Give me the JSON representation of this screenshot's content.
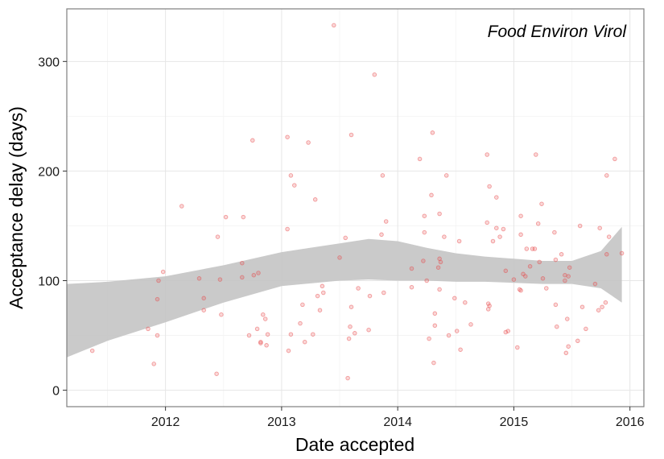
{
  "chart_data": {
    "type": "scatter",
    "title": "",
    "panel_label": "Food Environ Virol",
    "xlabel": "Date accepted",
    "ylabel": "Acceptance delay (days)",
    "x_ticks": [
      2012,
      2013,
      2014,
      2015,
      2016
    ],
    "y_ticks": [
      0,
      100,
      200,
      300
    ],
    "xlim": [
      2011.15,
      2016.12
    ],
    "ylim": [
      -15,
      348
    ],
    "grid": true,
    "point_color": "#e8474a",
    "band_color": "#c4c4c4",
    "series": [
      {
        "values": [
          [
            2011.37,
            36
          ],
          [
            2011.85,
            56
          ],
          [
            2011.9,
            24
          ],
          [
            2011.93,
            50
          ],
          [
            2011.93,
            83
          ],
          [
            2011.94,
            100
          ],
          [
            2011.98,
            108
          ],
          [
            2012.14,
            168
          ],
          [
            2012.29,
            102
          ],
          [
            2012.33,
            73
          ],
          [
            2012.33,
            84
          ],
          [
            2012.44,
            15
          ],
          [
            2012.45,
            140
          ],
          [
            2012.47,
            101
          ],
          [
            2012.48,
            69
          ],
          [
            2012.52,
            158
          ],
          [
            2012.66,
            116
          ],
          [
            2012.66,
            103
          ],
          [
            2012.67,
            158
          ],
          [
            2012.72,
            50
          ],
          [
            2012.75,
            228
          ],
          [
            2012.76,
            105
          ],
          [
            2012.79,
            56
          ],
          [
            2012.8,
            107
          ],
          [
            2012.82,
            44
          ],
          [
            2012.82,
            43
          ],
          [
            2012.84,
            69
          ],
          [
            2012.86,
            65
          ],
          [
            2012.87,
            41
          ],
          [
            2012.88,
            51
          ],
          [
            2013.05,
            231
          ],
          [
            2013.05,
            147
          ],
          [
            2013.06,
            36
          ],
          [
            2013.08,
            196
          ],
          [
            2013.08,
            51
          ],
          [
            2013.11,
            187
          ],
          [
            2013.16,
            61
          ],
          [
            2013.18,
            78
          ],
          [
            2013.2,
            44
          ],
          [
            2013.23,
            226
          ],
          [
            2013.27,
            51
          ],
          [
            2013.29,
            174
          ],
          [
            2013.31,
            86
          ],
          [
            2013.33,
            73
          ],
          [
            2013.35,
            95
          ],
          [
            2013.36,
            89
          ],
          [
            2013.45,
            333
          ],
          [
            2013.5,
            121
          ],
          [
            2013.55,
            139
          ],
          [
            2013.57,
            11
          ],
          [
            2013.58,
            47
          ],
          [
            2013.59,
            58
          ],
          [
            2013.6,
            76
          ],
          [
            2013.6,
            233
          ],
          [
            2013.63,
            52
          ],
          [
            2013.66,
            93
          ],
          [
            2013.75,
            55
          ],
          [
            2013.76,
            86
          ],
          [
            2013.8,
            288
          ],
          [
            2013.86,
            142
          ],
          [
            2013.87,
            196
          ],
          [
            2013.88,
            89
          ],
          [
            2013.9,
            154
          ],
          [
            2014.12,
            111
          ],
          [
            2014.12,
            94
          ],
          [
            2014.19,
            211
          ],
          [
            2014.22,
            118
          ],
          [
            2014.23,
            144
          ],
          [
            2014.23,
            159
          ],
          [
            2014.25,
            100
          ],
          [
            2014.27,
            47
          ],
          [
            2014.29,
            178
          ],
          [
            2014.3,
            235
          ],
          [
            2014.31,
            25
          ],
          [
            2014.32,
            70
          ],
          [
            2014.32,
            59
          ],
          [
            2014.35,
            112
          ],
          [
            2014.36,
            120
          ],
          [
            2014.36,
            161
          ],
          [
            2014.36,
            92
          ],
          [
            2014.37,
            117
          ],
          [
            2014.4,
            140
          ],
          [
            2014.42,
            196
          ],
          [
            2014.44,
            50
          ],
          [
            2014.49,
            84
          ],
          [
            2014.51,
            54
          ],
          [
            2014.53,
            136
          ],
          [
            2014.54,
            37
          ],
          [
            2014.58,
            80
          ],
          [
            2014.63,
            60
          ],
          [
            2014.77,
            215
          ],
          [
            2014.77,
            153
          ],
          [
            2014.78,
            79
          ],
          [
            2014.78,
            74
          ],
          [
            2014.79,
            77
          ],
          [
            2014.79,
            186
          ],
          [
            2014.82,
            136
          ],
          [
            2014.85,
            176
          ],
          [
            2014.85,
            148
          ],
          [
            2014.88,
            140
          ],
          [
            2014.91,
            147
          ],
          [
            2014.93,
            53
          ],
          [
            2014.93,
            109
          ],
          [
            2014.95,
            54
          ],
          [
            2015.0,
            101
          ],
          [
            2015.03,
            39
          ],
          [
            2015.05,
            92
          ],
          [
            2015.06,
            91
          ],
          [
            2015.06,
            159
          ],
          [
            2015.06,
            142
          ],
          [
            2015.08,
            106
          ],
          [
            2015.1,
            104
          ],
          [
            2015.11,
            129
          ],
          [
            2015.14,
            113
          ],
          [
            2015.16,
            129
          ],
          [
            2015.18,
            129
          ],
          [
            2015.19,
            215
          ],
          [
            2015.21,
            152
          ],
          [
            2015.22,
            117
          ],
          [
            2015.24,
            170
          ],
          [
            2015.25,
            102
          ],
          [
            2015.28,
            93
          ],
          [
            2015.35,
            144
          ],
          [
            2015.36,
            119
          ],
          [
            2015.36,
            78
          ],
          [
            2015.37,
            58
          ],
          [
            2015.41,
            124
          ],
          [
            2015.44,
            105
          ],
          [
            2015.44,
            100
          ],
          [
            2015.45,
            34
          ],
          [
            2015.46,
            65
          ],
          [
            2015.47,
            40
          ],
          [
            2015.47,
            104
          ],
          [
            2015.48,
            112
          ],
          [
            2015.55,
            45
          ],
          [
            2015.57,
            150
          ],
          [
            2015.59,
            76
          ],
          [
            2015.62,
            56
          ],
          [
            2015.7,
            97
          ],
          [
            2015.73,
            73
          ],
          [
            2015.74,
            148
          ],
          [
            2015.76,
            76
          ],
          [
            2015.79,
            80
          ],
          [
            2015.8,
            196
          ],
          [
            2015.8,
            124
          ],
          [
            2015.82,
            140
          ],
          [
            2015.87,
            211
          ],
          [
            2015.93,
            125
          ]
        ]
      }
    ],
    "ci_band": {
      "x": [
        2011.15,
        2011.5,
        2012.0,
        2012.5,
        2013.0,
        2013.5,
        2013.75,
        2014.0,
        2014.25,
        2014.5,
        2014.75,
        2015.0,
        2015.25,
        2015.5,
        2015.75,
        2015.93
      ],
      "upper": [
        97,
        99,
        104,
        114,
        126,
        134,
        138,
        136,
        130,
        125,
        122,
        120,
        118,
        118,
        127,
        149
      ],
      "lower": [
        30,
        45,
        62,
        80,
        95,
        100,
        101,
        100,
        100,
        99,
        99,
        98,
        97,
        97,
        93,
        80
      ]
    }
  }
}
